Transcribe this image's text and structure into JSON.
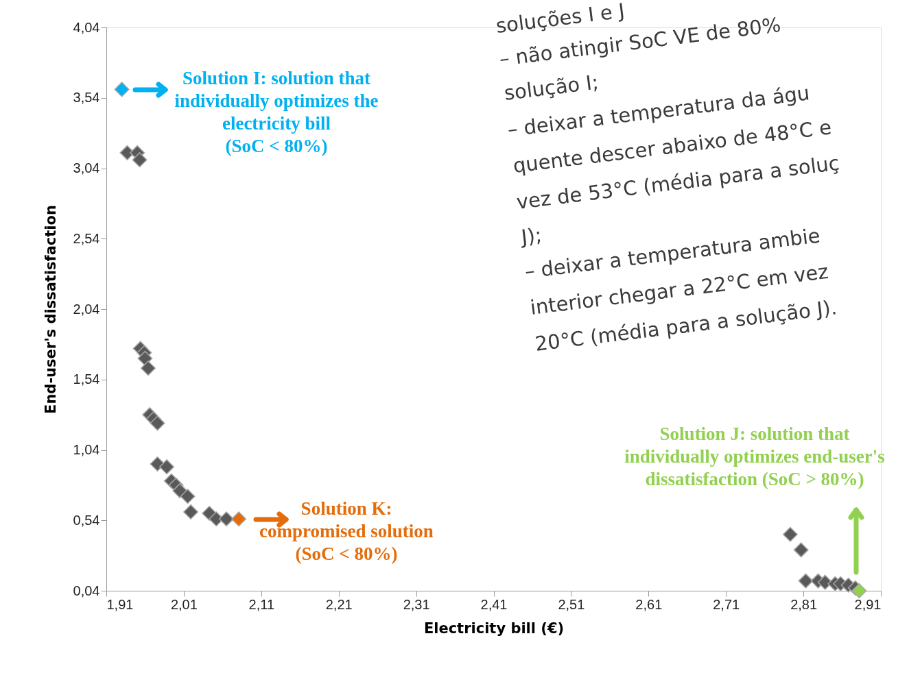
{
  "chart_data": {
    "type": "scatter",
    "xlabel": "Electricity bill (€)",
    "ylabel": "End-user's dissatisfaction",
    "xlim": [
      1.91,
      2.91
    ],
    "ylim": [
      0.04,
      4.04
    ],
    "xticks": [
      {
        "value": 1.91,
        "label": "1,91"
      },
      {
        "value": 2.01,
        "label": "2,01"
      },
      {
        "value": 2.11,
        "label": "2,11"
      },
      {
        "value": 2.21,
        "label": "2,21"
      },
      {
        "value": 2.31,
        "label": "2,31"
      },
      {
        "value": 2.41,
        "label": "2,41"
      },
      {
        "value": 2.51,
        "label": "2,51"
      },
      {
        "value": 2.61,
        "label": "2,61"
      },
      {
        "value": 2.71,
        "label": "2,71"
      },
      {
        "value": 2.81,
        "label": "2,81"
      },
      {
        "value": 2.91,
        "label": "2,91"
      }
    ],
    "yticks": [
      {
        "value": 0.04,
        "label": "0,04"
      },
      {
        "value": 0.54,
        "label": "0,54"
      },
      {
        "value": 1.04,
        "label": "1,04"
      },
      {
        "value": 1.54,
        "label": "1,54"
      },
      {
        "value": 2.04,
        "label": "2,04"
      },
      {
        "value": 2.54,
        "label": "2,54"
      },
      {
        "value": 3.04,
        "label": "3,04"
      },
      {
        "value": 3.54,
        "label": "3,54"
      },
      {
        "value": 4.04,
        "label": "4,04"
      }
    ],
    "grid": false,
    "legend": false,
    "marker": "diamond",
    "series": [
      {
        "color": "#595959",
        "x": [
          1.937,
          1.95,
          1.953,
          1.954,
          1.959,
          1.96,
          1.964,
          1.966,
          1.971,
          1.976,
          1.976,
          1.988,
          1.994,
          2.0,
          2.005,
          2.015,
          2.019,
          2.043,
          2.052,
          2.065,
          2.793,
          2.807,
          2.813,
          2.829,
          2.838,
          2.851,
          2.858,
          2.868,
          2.877
        ],
        "values": [
          3.15,
          3.15,
          3.1,
          1.76,
          1.73,
          1.69,
          1.62,
          1.29,
          1.26,
          1.23,
          0.94,
          0.92,
          0.82,
          0.79,
          0.75,
          0.71,
          0.6,
          0.59,
          0.55,
          0.55,
          0.44,
          0.33,
          0.11,
          0.11,
          0.1,
          0.09,
          0.09,
          0.08,
          0.06
        ]
      },
      {
        "color": "#00b0f0",
        "x": [
          1.93
        ],
        "values": [
          3.6
        ]
      },
      {
        "color": "#e46c0a",
        "x": [
          2.081
        ],
        "values": [
          0.55
        ]
      },
      {
        "color": "#92d050",
        "x": [
          2.882
        ],
        "values": [
          0.04
        ]
      }
    ],
    "annotations": [
      "Solution I: solution that\nindividually optimizes the\nelectricity bill\n(SoC < 80%)",
      "Solution K:\ncompromised solution\n(SoC < 80%)",
      "Solution J: solution that\nindividually optimizes end-user's\ndissatisfaction (SoC > 80%)",
      "soluções I e J",
      "– não atingir SoC VE de 80%",
      "solução I;",
      "– deixar a temperatura da águ",
      "quente descer abaixo de 48°C e",
      "vez de 53°C (média para a soluç",
      "J);",
      "– deixar a temperatura ambie",
      "interior chegar a 22°C em vez",
      "20°C (média para a solução J)."
    ]
  }
}
